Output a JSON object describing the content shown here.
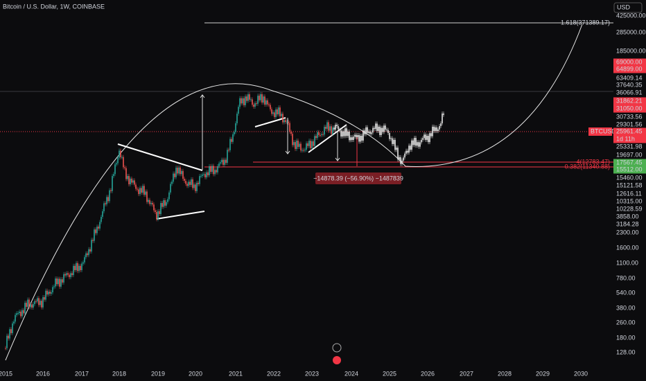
{
  "header": {
    "title": "Bitcoin / U.S. Dollar, 1W, COINBASE",
    "currency": "USD"
  },
  "price_axis": {
    "labels": [
      "425000.00",
      "285000.00",
      "185000.00",
      "69000.00",
      "64899.00",
      "63409.14",
      "37640.35",
      "36066.91",
      "31862.21",
      "31050.00",
      "30733.56",
      "29301.56",
      "25961.45",
      "1d 11h",
      "25331.98",
      "19697.00",
      "17567.45",
      "15512.00",
      "15460.00",
      "15121.58",
      "12616.11",
      "10315.00",
      "10228.59",
      "3858.00",
      "3184.28",
      "2300.00",
      "1600.00",
      "1100.00",
      "780.00",
      "540.00",
      "380.00",
      "260.00",
      "180.00",
      "128.00"
    ],
    "symbol": "BTCUSD"
  },
  "time_axis": {
    "labels": [
      "2015",
      "2016",
      "2017",
      "2018",
      "2019",
      "2020",
      "2021",
      "2022",
      "2023",
      "2024",
      "2025",
      "2026",
      "2027",
      "2028",
      "2029",
      "2030"
    ]
  },
  "annotations": {
    "fib_top": "1.618(371389.17)",
    "fib_mid": "-4(12783.47)",
    "fib_low": "0.382(11340.88)",
    "measure": "−14878.39 (−56.90%) −1487839"
  }
}
